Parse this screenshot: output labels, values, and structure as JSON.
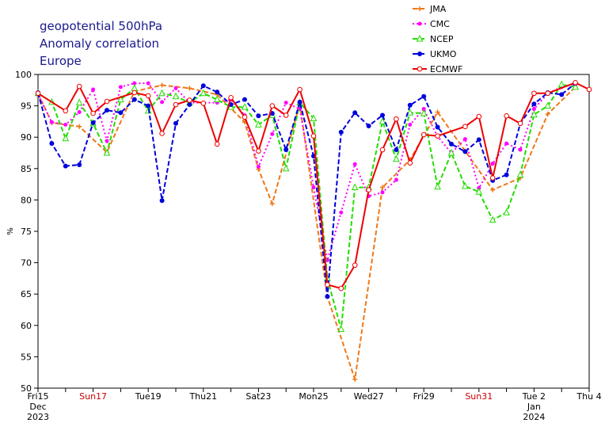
{
  "chart_data": {
    "type": "line",
    "title_lines": [
      "geopotential 500hPa",
      "Anomaly correlation",
      "Europe"
    ],
    "ylabel": "%",
    "ylim": [
      50,
      100
    ],
    "yticks": [
      50,
      55,
      60,
      65,
      70,
      75,
      80,
      85,
      90,
      95,
      100
    ],
    "x_start": "2023-12-15",
    "x_end": "2024-01-04",
    "x_ticks": [
      {
        "date": "2023-12-15",
        "lines": [
          "Fri15",
          "Dec",
          "2023"
        ],
        "color": "#000000"
      },
      {
        "date": "2023-12-17",
        "lines": [
          "Sun17"
        ],
        "color": "#cc0000"
      },
      {
        "date": "2023-12-19",
        "lines": [
          "Tue19"
        ],
        "color": "#000000"
      },
      {
        "date": "2023-12-21",
        "lines": [
          "Thu21"
        ],
        "color": "#000000"
      },
      {
        "date": "2023-12-23",
        "lines": [
          "Sat23"
        ],
        "color": "#000000"
      },
      {
        "date": "2023-12-25",
        "lines": [
          "Mon25"
        ],
        "color": "#000000"
      },
      {
        "date": "2023-12-27",
        "lines": [
          "Wed27"
        ],
        "color": "#000000"
      },
      {
        "date": "2023-12-29",
        "lines": [
          "Fri29"
        ],
        "color": "#000000"
      },
      {
        "date": "2023-12-31",
        "lines": [
          "Sun31"
        ],
        "color": "#cc0000"
      },
      {
        "date": "2024-01-02",
        "lines": [
          "Tue 2",
          "Jan",
          "2024"
        ],
        "color": "#000000"
      },
      {
        "date": "2024-01-04",
        "lines": [
          "Thu 4"
        ],
        "color": "#000000"
      }
    ],
    "grid": false,
    "legend_position": "top-right",
    "series": [
      {
        "name": "JMA",
        "color": "#f07818",
        "dash": "6,3",
        "marker": "plus",
        "points": [
          [
            "2023-12-15 00",
            97.0
          ],
          [
            "2023-12-15 12",
            92.3
          ],
          [
            "2023-12-16 12",
            91.7
          ],
          [
            "2023-12-17 12",
            87.6
          ],
          [
            "2023-12-18 12",
            97.3
          ],
          [
            "2023-12-19 12",
            98.3
          ],
          [
            "2023-12-20 12",
            97.8
          ],
          [
            "2023-12-21 12",
            96.8
          ],
          [
            "2023-12-22 12",
            92.4
          ],
          [
            "2023-12-23 00",
            84.9
          ],
          [
            "2023-12-23 12",
            79.4
          ],
          [
            "2023-12-24 12",
            95.3
          ],
          [
            "2023-12-25 12",
            64.6
          ],
          [
            "2023-12-26 12",
            51.4
          ],
          [
            "2023-12-27 12",
            82.0
          ],
          [
            "2023-12-28 12",
            86.4
          ],
          [
            "2023-12-29 12",
            94.0
          ],
          [
            "2023-12-30 12",
            87.8
          ],
          [
            "2023-12-31 12",
            81.6
          ],
          [
            "2024-01-01 12",
            83.5
          ],
          [
            "2024-01-02 12",
            93.7
          ],
          [
            "2024-01-03 12",
            98.0
          ]
        ]
      },
      {
        "name": "CMC",
        "color": "#ff00ff",
        "dash": "2,3",
        "marker": "dot",
        "points": [
          [
            "2023-12-15 00",
            96.8
          ],
          [
            "2023-12-15 12",
            92.4
          ],
          [
            "2023-12-16 00",
            92.0
          ],
          [
            "2023-12-16 12",
            94.0
          ],
          [
            "2023-12-17 00",
            97.6
          ],
          [
            "2023-12-17 12",
            89.4
          ],
          [
            "2023-12-18 00",
            98.0
          ],
          [
            "2023-12-18 12",
            98.6
          ],
          [
            "2023-12-19 00",
            98.6
          ],
          [
            "2023-12-19 12",
            95.6
          ],
          [
            "2023-12-20 00",
            97.8
          ],
          [
            "2023-12-20 12",
            95.5
          ],
          [
            "2023-12-21 00",
            95.5
          ],
          [
            "2023-12-21 12",
            95.5
          ],
          [
            "2023-12-22 00",
            96.0
          ],
          [
            "2023-12-22 12",
            93.5
          ],
          [
            "2023-12-23 00",
            85.3
          ],
          [
            "2023-12-23 12",
            90.5
          ],
          [
            "2023-12-24 00",
            95.5
          ],
          [
            "2023-12-24 12",
            94.5
          ],
          [
            "2023-12-25 00",
            82.0
          ],
          [
            "2023-12-25 12",
            70.4
          ],
          [
            "2023-12-26 00",
            78.0
          ],
          [
            "2023-12-26 12",
            85.7
          ],
          [
            "2023-12-27 00",
            80.6
          ],
          [
            "2023-12-27 12",
            81.2
          ],
          [
            "2023-12-28 00",
            83.2
          ],
          [
            "2023-12-28 12",
            92.0
          ],
          [
            "2023-12-29 00",
            94.5
          ],
          [
            "2023-12-29 12",
            90.1
          ],
          [
            "2023-12-30 00",
            87.5
          ],
          [
            "2023-12-30 12",
            89.7
          ],
          [
            "2023-12-31 00",
            81.9
          ],
          [
            "2023-12-31 12",
            85.8
          ],
          [
            "2024-01-01 00",
            89.0
          ],
          [
            "2024-01-01 12",
            88.0
          ],
          [
            "2024-01-02 00",
            94.5
          ],
          [
            "2024-01-02 12",
            97.0
          ],
          [
            "2024-01-03 00",
            98.0
          ],
          [
            "2024-01-03 12",
            98.4
          ]
        ]
      },
      {
        "name": "NCEP",
        "color": "#22dd00",
        "dash": "6,3",
        "marker": "triangle",
        "points": [
          [
            "2023-12-15 00",
            97.0
          ],
          [
            "2023-12-15 12",
            95.6
          ],
          [
            "2023-12-16 00",
            89.8
          ],
          [
            "2023-12-16 12",
            95.5
          ],
          [
            "2023-12-17 00",
            92.2
          ],
          [
            "2023-12-17 12",
            87.5
          ],
          [
            "2023-12-18 00",
            96.0
          ],
          [
            "2023-12-18 12",
            97.8
          ],
          [
            "2023-12-19 00",
            94.2
          ],
          [
            "2023-12-19 12",
            97.0
          ],
          [
            "2023-12-20 00",
            96.5
          ],
          [
            "2023-12-20 12",
            95.5
          ],
          [
            "2023-12-21 00",
            97.0
          ],
          [
            "2023-12-21 12",
            96.0
          ],
          [
            "2023-12-22 00",
            94.8
          ],
          [
            "2023-12-22 12",
            94.8
          ],
          [
            "2023-12-23 00",
            92.0
          ],
          [
            "2023-12-23 12",
            93.5
          ],
          [
            "2023-12-24 00",
            85.0
          ],
          [
            "2023-12-24 12",
            95.5
          ],
          [
            "2023-12-25 00",
            93.0
          ],
          [
            "2023-12-25 12",
            67.5
          ],
          [
            "2023-12-26 00",
            59.4
          ],
          [
            "2023-12-26 12",
            82.0
          ],
          [
            "2023-12-27 00",
            82.0
          ],
          [
            "2023-12-27 12",
            92.5
          ],
          [
            "2023-12-28 00",
            86.5
          ],
          [
            "2023-12-28 12",
            93.9
          ],
          [
            "2023-12-29 00",
            93.8
          ],
          [
            "2023-12-29 12",
            82.1
          ],
          [
            "2023-12-30 00",
            87.5
          ],
          [
            "2023-12-30 12",
            82.2
          ],
          [
            "2023-12-31 00",
            81.3
          ],
          [
            "2023-12-31 12",
            76.8
          ],
          [
            "2024-01-01 00",
            78.0
          ],
          [
            "2024-01-01 12",
            84.0
          ],
          [
            "2024-01-02 00",
            93.6
          ],
          [
            "2024-01-02 12",
            95.0
          ],
          [
            "2024-01-03 00",
            98.4
          ],
          [
            "2024-01-03 12",
            98.0
          ]
        ]
      },
      {
        "name": "UKMO",
        "color": "#0000dd",
        "dash": "6,3",
        "marker": "filled-circle",
        "points": [
          [
            "2023-12-15 00",
            97.1
          ],
          [
            "2023-12-15 12",
            89.0
          ],
          [
            "2023-12-16 00",
            85.4
          ],
          [
            "2023-12-16 12",
            85.6
          ],
          [
            "2023-12-17 00",
            92.3
          ],
          [
            "2023-12-17 12",
            94.3
          ],
          [
            "2023-12-18 00",
            93.9
          ],
          [
            "2023-12-18 12",
            96.0
          ],
          [
            "2023-12-19 00",
            95.0
          ],
          [
            "2023-12-19 12",
            79.9
          ],
          [
            "2023-12-20 00",
            92.2
          ],
          [
            "2023-12-20 12",
            95.2
          ],
          [
            "2023-12-21 00",
            98.2
          ],
          [
            "2023-12-21 12",
            97.2
          ],
          [
            "2023-12-22 00",
            95.2
          ],
          [
            "2023-12-22 12",
            96.0
          ],
          [
            "2023-12-23 00",
            93.4
          ],
          [
            "2023-12-23 12",
            93.8
          ],
          [
            "2023-12-24 00",
            88.0
          ],
          [
            "2023-12-24 12",
            95.6
          ],
          [
            "2023-12-25 00",
            87.0
          ],
          [
            "2023-12-25 12",
            64.6
          ],
          [
            "2023-12-26 00",
            90.8
          ],
          [
            "2023-12-26 12",
            93.9
          ],
          [
            "2023-12-27 00",
            91.8
          ],
          [
            "2023-12-27 12",
            93.5
          ],
          [
            "2023-12-28 00",
            88.0
          ],
          [
            "2023-12-28 12",
            95.1
          ],
          [
            "2023-12-29 00",
            96.5
          ],
          [
            "2023-12-29 12",
            91.6
          ],
          [
            "2023-12-30 00",
            88.9
          ],
          [
            "2023-12-30 12",
            87.7
          ],
          [
            "2023-12-31 00",
            89.6
          ],
          [
            "2023-12-31 12",
            83.1
          ],
          [
            "2024-01-01 00",
            84.0
          ],
          [
            "2024-01-01 12",
            92.2
          ],
          [
            "2024-01-02 00",
            95.3
          ],
          [
            "2024-01-02 12",
            97.1
          ],
          [
            "2024-01-03 00",
            96.8
          ],
          [
            "2024-01-03 12",
            98.6
          ]
        ]
      },
      {
        "name": "ECMWF",
        "color": "#ee0000",
        "dash": "",
        "marker": "open-circle",
        "points": [
          [
            "2023-12-15 00",
            97.0
          ],
          [
            "2023-12-16 00",
            94.2
          ],
          [
            "2023-12-16 12",
            98.1
          ],
          [
            "2023-12-17 00",
            93.8
          ],
          [
            "2023-12-17 12",
            95.7
          ],
          [
            "2023-12-18 12",
            97.1
          ],
          [
            "2023-12-19 00",
            96.6
          ],
          [
            "2023-12-19 12",
            90.6
          ],
          [
            "2023-12-20 00",
            95.2
          ],
          [
            "2023-12-20 12",
            95.9
          ],
          [
            "2023-12-21 00",
            95.4
          ],
          [
            "2023-12-21 12",
            88.9
          ],
          [
            "2023-12-22 00",
            96.3
          ],
          [
            "2023-12-22 12",
            93.2
          ],
          [
            "2023-12-23 00",
            87.8
          ],
          [
            "2023-12-23 12",
            95.0
          ],
          [
            "2023-12-24 00",
            93.5
          ],
          [
            "2023-12-24 12",
            97.6
          ],
          [
            "2023-12-25 00",
            90.2
          ],
          [
            "2023-12-25 12",
            66.5
          ],
          [
            "2023-12-26 00",
            65.9
          ],
          [
            "2023-12-26 12",
            69.6
          ],
          [
            "2023-12-27 00",
            81.6
          ],
          [
            "2023-12-27 12",
            88.0
          ],
          [
            "2023-12-28 00",
            92.9
          ],
          [
            "2023-12-28 12",
            85.9
          ],
          [
            "2023-12-29 00",
            90.4
          ],
          [
            "2023-12-29 12",
            90.2
          ],
          [
            "2023-12-30 12",
            91.7
          ],
          [
            "2023-12-31 00",
            93.3
          ],
          [
            "2023-12-31 12",
            83.5
          ],
          [
            "2024-01-01 00",
            93.4
          ],
          [
            "2024-01-01 12",
            92.2
          ],
          [
            "2024-01-02 00",
            97.0
          ],
          [
            "2024-01-02 12",
            97.0
          ],
          [
            "2024-01-03 12",
            98.7
          ],
          [
            "2024-01-04 00",
            97.6
          ]
        ]
      }
    ]
  }
}
